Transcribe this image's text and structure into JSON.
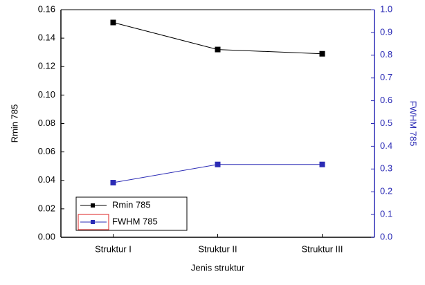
{
  "chart_data": {
    "type": "line",
    "categories": [
      "Struktur I",
      "Struktur II",
      "Struktur III"
    ],
    "x_label": "Jenis struktur",
    "y_label": "Rmin 785",
    "y2_label": "FWHM 785",
    "ylim": [
      0,
      0.16
    ],
    "yticks": [
      {
        "value": 0,
        "label": "0.00"
      },
      0.02,
      0.04,
      0.06,
      0.08,
      {
        "value": 0.1,
        "label": "0.10"
      },
      0.12,
      0.14,
      0.16
    ],
    "y2lim": [
      0,
      1
    ],
    "y2ticks": [
      {
        "value": 0,
        "label": "0.0"
      },
      0.1,
      0.2,
      0.3,
      0.4,
      0.5,
      0.6,
      0.7,
      0.8,
      0.9,
      {
        "value": 1,
        "label": "1.0"
      }
    ],
    "y2color": "#2b2bb5",
    "legend": "lower left",
    "series": [
      {
        "name": "Rmin 785",
        "color": "#000000",
        "values": [
          0.151,
          0.132,
          0.129
        ]
      },
      {
        "name": "FWHM 785",
        "color": "#2b2bb5",
        "values": [
          0.24,
          0.32,
          0.32
        ],
        "axis": "y2"
      }
    ]
  }
}
